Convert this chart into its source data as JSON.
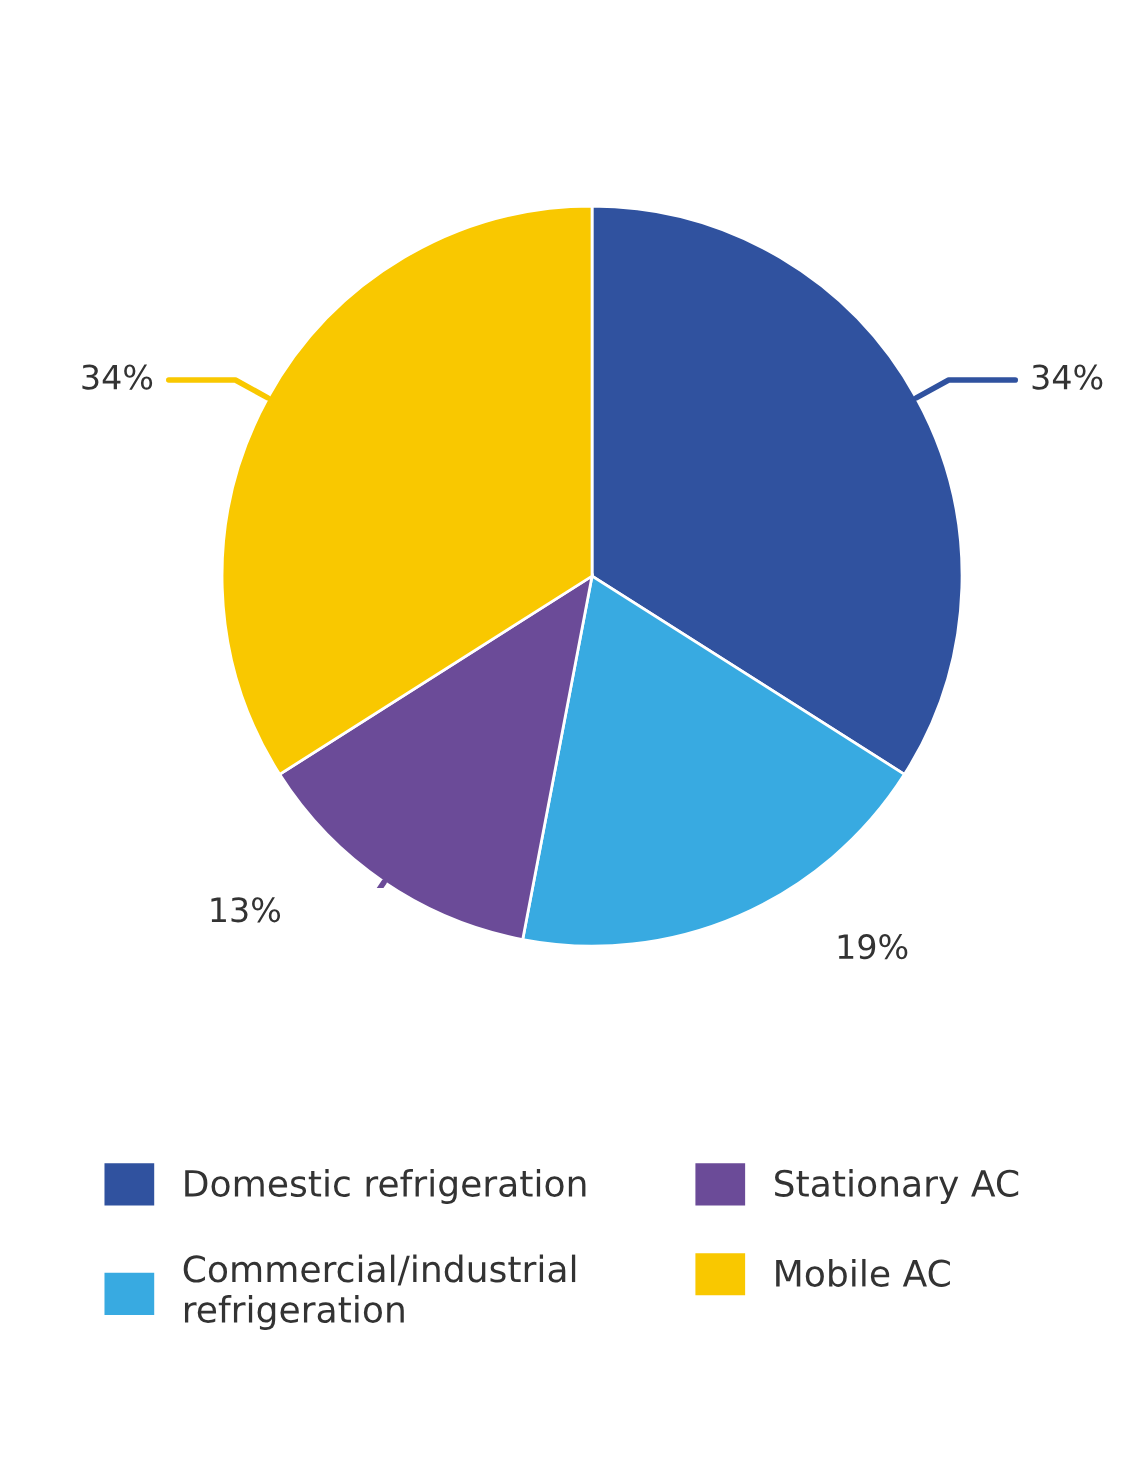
{
  "chart_data": {
    "type": "pie",
    "categories": [
      "Domestic refrigeration",
      "Commercial/industrial\nrefrigeration",
      "Stationary AC",
      "Mobile AC"
    ],
    "values": [
      34,
      19,
      13,
      34
    ],
    "colors": [
      "#30529f",
      "#38aae1",
      "#6b4b98",
      "#f9c800"
    ],
    "value_labels": [
      "34%",
      "19%",
      "13%",
      "34%"
    ],
    "legend": "bottom"
  }
}
